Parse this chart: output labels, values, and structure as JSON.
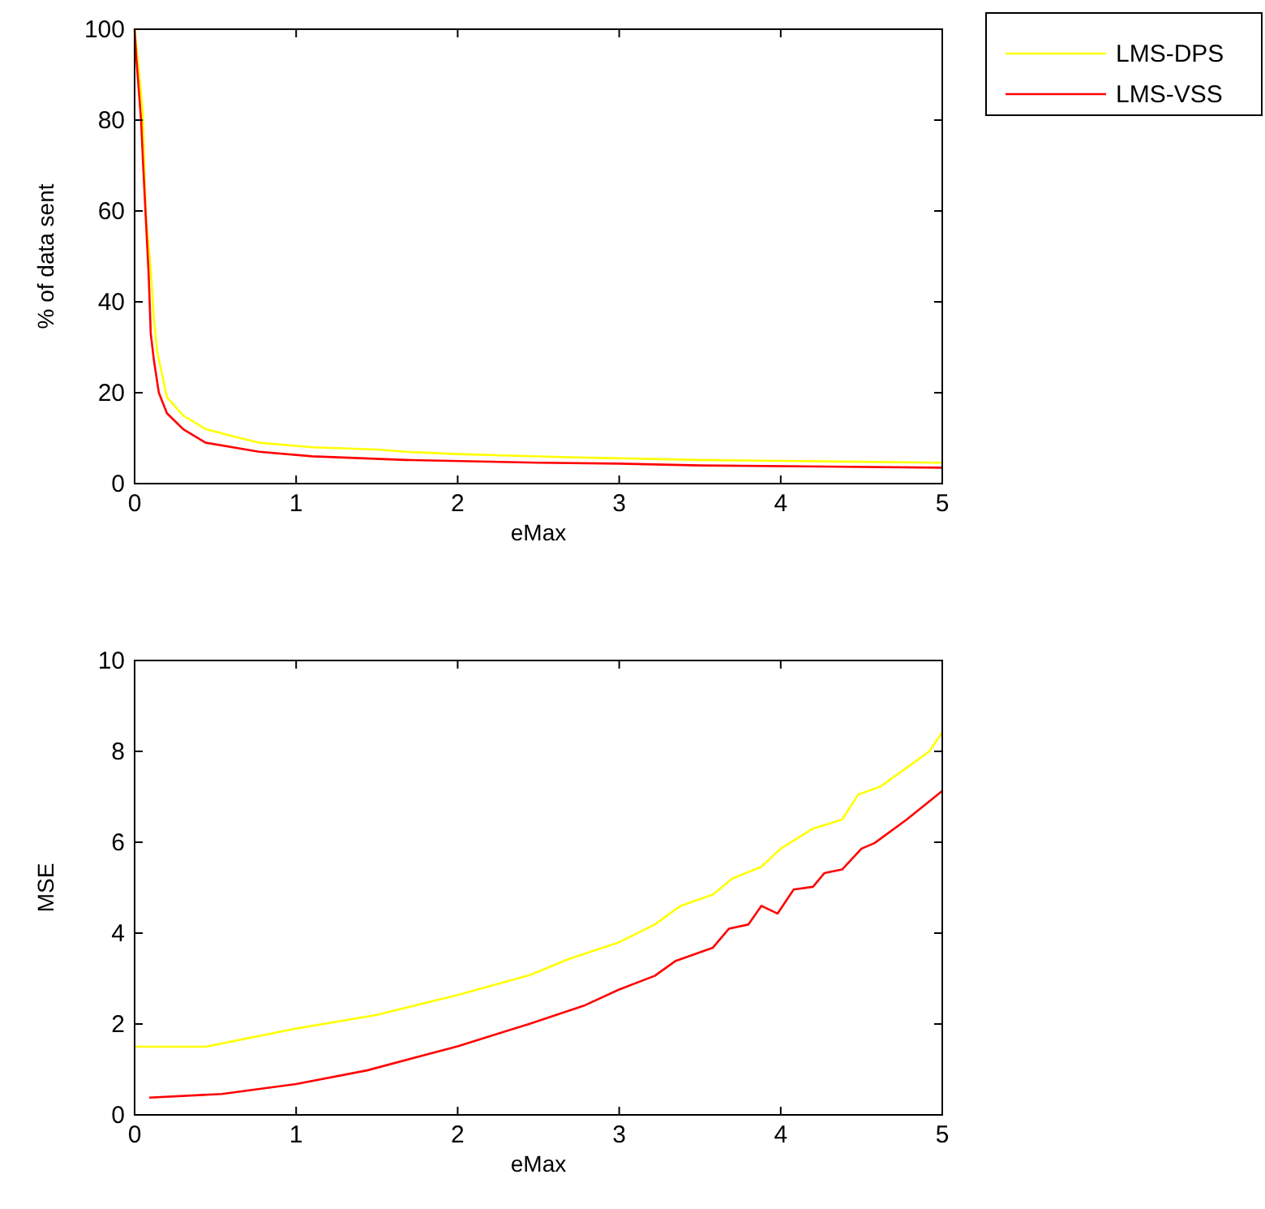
{
  "chart_data": [
    {
      "type": "line",
      "xlabel": "eMax",
      "ylabel": "% of data sent",
      "xlim": [
        0,
        5
      ],
      "ylim": [
        0,
        100
      ],
      "xticks": [
        0,
        1,
        2,
        3,
        4,
        5
      ],
      "yticks": [
        0,
        20,
        40,
        60,
        80,
        100
      ],
      "legend": "right",
      "grid": false,
      "series": [
        {
          "name": "LMS-DPS",
          "color": "#ffff00",
          "x": [
            0,
            0.05,
            0.06,
            0.07,
            0.1,
            0.12,
            0.14,
            0.2,
            0.3,
            0.44,
            0.6,
            0.77,
            1.1,
            1.5,
            1.68,
            2,
            2.68,
            3.5,
            4,
            5
          ],
          "values": [
            100,
            82,
            70,
            59,
            47,
            36,
            29,
            19,
            15,
            12,
            10.5,
            9,
            8,
            7.5,
            7,
            6.5,
            5.8,
            5.2,
            5,
            4.6
          ]
        },
        {
          "name": "LMS-VSS",
          "color": "#ff0000",
          "x": [
            0,
            0.01,
            0.04,
            0.053,
            0.07,
            0.087,
            0.1,
            0.12,
            0.15,
            0.2,
            0.3,
            0.44,
            0.77,
            1.1,
            1.68,
            2.5,
            3,
            3.5,
            5
          ],
          "values": [
            100,
            94,
            80,
            70,
            58,
            46,
            33,
            27,
            20,
            15.5,
            12,
            9,
            7,
            6,
            5.2,
            4.6,
            4.4,
            4,
            3.5
          ]
        }
      ]
    },
    {
      "type": "line",
      "xlabel": "eMax",
      "ylabel": "MSE",
      "xlim": [
        0,
        5
      ],
      "ylim": [
        0,
        10
      ],
      "xticks": [
        0,
        1,
        2,
        3,
        4,
        5
      ],
      "yticks": [
        0,
        2,
        4,
        6,
        8,
        10
      ],
      "legend": false,
      "grid": false,
      "series": [
        {
          "color": "#ffff00",
          "x": [
            0,
            0.44,
            1,
            1.5,
            2,
            2.45,
            2.68,
            3,
            3.22,
            3.38,
            3.58,
            3.7,
            3.88,
            4,
            4.2,
            4.38,
            4.48,
            4.62,
            4.78,
            4.92,
            5
          ],
          "values": [
            1.5,
            1.5,
            1.9,
            2.2,
            2.64,
            3.08,
            3.42,
            3.8,
            4.19,
            4.6,
            4.85,
            5.2,
            5.46,
            5.86,
            6.3,
            6.5,
            7.05,
            7.23,
            7.64,
            8,
            8.42
          ]
        },
        {
          "color": "#ff0000",
          "x": [
            0.09,
            0.54,
            1,
            1.44,
            2,
            2.45,
            2.78,
            3,
            3.22,
            3.35,
            3.58,
            3.68,
            3.8,
            3.88,
            3.98,
            4.08,
            4.2,
            4.27,
            4.38,
            4.5,
            4.58,
            4.78,
            5
          ],
          "values": [
            0.38,
            0.46,
            0.68,
            0.98,
            1.51,
            2.01,
            2.4,
            2.76,
            3.06,
            3.39,
            3.68,
            4.1,
            4.19,
            4.6,
            4.43,
            4.96,
            5.02,
            5.32,
            5.4,
            5.86,
            5.98,
            6.5,
            7.13
          ]
        }
      ]
    }
  ]
}
